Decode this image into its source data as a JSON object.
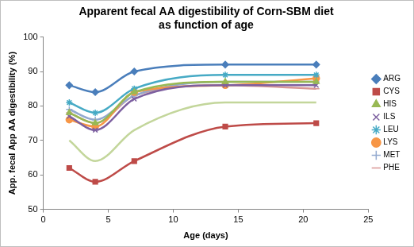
{
  "chart_data": {
    "type": "line",
    "title": [
      "Apparent fecal AA digestibility of Corn-SBM diet",
      "as function of age"
    ],
    "x_label": "Age (days)",
    "y_label": "App. fecal App AA digestibility (%)",
    "x": [
      2,
      4,
      7,
      14,
      21
    ],
    "xlim": [
      0,
      25
    ],
    "xticks": [
      0,
      5,
      10,
      15,
      20,
      25
    ],
    "ylim": [
      50,
      100
    ],
    "yticks": [
      50,
      60,
      70,
      80,
      90,
      100
    ],
    "grid": false,
    "legend": "right",
    "series": [
      {
        "name": "ARG",
        "color": "#4a7ebb",
        "marker": "diamond",
        "values": [
          86,
          84,
          90,
          92,
          92
        ]
      },
      {
        "name": "CYS",
        "color": "#be4b48",
        "marker": "square",
        "values": [
          62,
          58,
          64,
          74,
          75
        ]
      },
      {
        "name": "HIS",
        "color": "#98b954",
        "marker": "triangle",
        "values": [
          78,
          75,
          84,
          87,
          87
        ]
      },
      {
        "name": "ILS",
        "color": "#7d60a0",
        "marker": "x",
        "values": [
          77,
          73,
          82,
          86,
          86
        ]
      },
      {
        "name": "LEU",
        "color": "#46aac5",
        "marker": "star",
        "values": [
          81,
          78,
          85,
          89,
          89
        ]
      },
      {
        "name": "LYS",
        "color": "#f79646",
        "marker": "circle",
        "values": [
          76,
          74,
          84,
          86,
          88
        ]
      },
      {
        "name": "MET",
        "color": "#92a9cf",
        "marker": "plus",
        "values": [
          79,
          76,
          83,
          87,
          87
        ]
      },
      {
        "name": "PHE",
        "color": "#d99694",
        "marker": "dash",
        "values": [
          78,
          75,
          83,
          86,
          85
        ]
      },
      {
        "name": null,
        "color": "#c3d69b",
        "marker": "none",
        "values": [
          70,
          64,
          73,
          81,
          81
        ]
      }
    ]
  }
}
